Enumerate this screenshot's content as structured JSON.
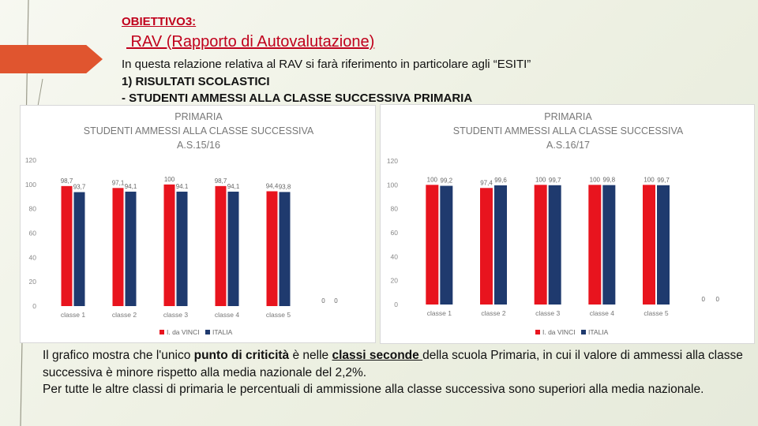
{
  "header": {
    "objective": "OBIETTIVO3:",
    "rav_title": " RAV (Rapporto di Autovalutazione)",
    "intro_line": "In questa relazione relativa al RAV si farà riferimento in particolare agli “ESITI”",
    "section_line": "1)  RISULTATI SCOLASTICI",
    "subsection_line": "- STUDENTI AMMESSI ALLA CLASSE SUCCESSIVA PRIMARIA"
  },
  "colors": {
    "series_school": "#e8141e",
    "series_italy": "#1f3a6e",
    "accent": "#c0001c",
    "arrow": "#e0552f"
  },
  "chart_data": [
    {
      "type": "bar",
      "title_lines": [
        "PRIMARIA",
        "STUDENTI AMMESSI ALLA CLASSE SUCCESSIVA",
        "A.S.15/16"
      ],
      "categories": [
        "classe 1",
        "classe 2",
        "classe 3",
        "classe 4",
        "classe 5",
        ""
      ],
      "series": [
        {
          "name": "I. da VINCI",
          "values": [
            98.7,
            97.1,
            100,
            98.7,
            94.4,
            0
          ],
          "labels": [
            "98,7",
            "97,1",
            "100",
            "98,7",
            "94,4",
            "0"
          ]
        },
        {
          "name": "ITALIA",
          "values": [
            93.7,
            94.1,
            94.1,
            94.1,
            93.8,
            0
          ],
          "labels": [
            "93,7",
            "94,1",
            "94.1",
            "94,1",
            "93,8",
            "0"
          ]
        }
      ],
      "y_ticks": [
        "0",
        "20",
        "40",
        "60",
        "80",
        "100",
        "120"
      ],
      "ylim": [
        0,
        120
      ],
      "grid": false,
      "legend": "bottom"
    },
    {
      "type": "bar",
      "title_lines": [
        "PRIMARIA",
        "STUDENTI AMMESSI ALLA CLASSE SUCCESSIVA",
        "A.S.16/17"
      ],
      "categories": [
        "classe 1",
        "classe 2",
        "classe 3",
        "classe 4",
        "classe 5",
        ""
      ],
      "series": [
        {
          "name": "I. da VINCI",
          "values": [
            100,
            97.4,
            100,
            100,
            100,
            0
          ],
          "labels": [
            "100",
            "97,4",
            "100",
            "100",
            "100",
            "0"
          ]
        },
        {
          "name": "ITALIA",
          "values": [
            99.2,
            99.6,
            99.7,
            99.8,
            99.7,
            0
          ],
          "labels": [
            "99,2",
            "99,6",
            "99,7",
            "99,8",
            "99,7",
            "0"
          ]
        }
      ],
      "y_ticks": [
        "0",
        "20",
        "40",
        "60",
        "80",
        "100",
        "120"
      ],
      "ylim": [
        0,
        120
      ],
      "grid": false,
      "legend": "bottom"
    }
  ],
  "footer": {
    "p1_a": "Il grafico mostra che l'unico ",
    "p1_b": "punto di criticità",
    "p1_c": " è nelle ",
    "p1_d": "classi seconde ",
    "p1_e": "della scuola Primaria, in cui il valore di ammessi alla classe successiva è minore rispetto alla media nazionale del 2,2%.",
    "p2": "Per tutte le altre classi di primaria le percentuali di ammissione alla classe successiva sono superiori alla media nazionale."
  }
}
